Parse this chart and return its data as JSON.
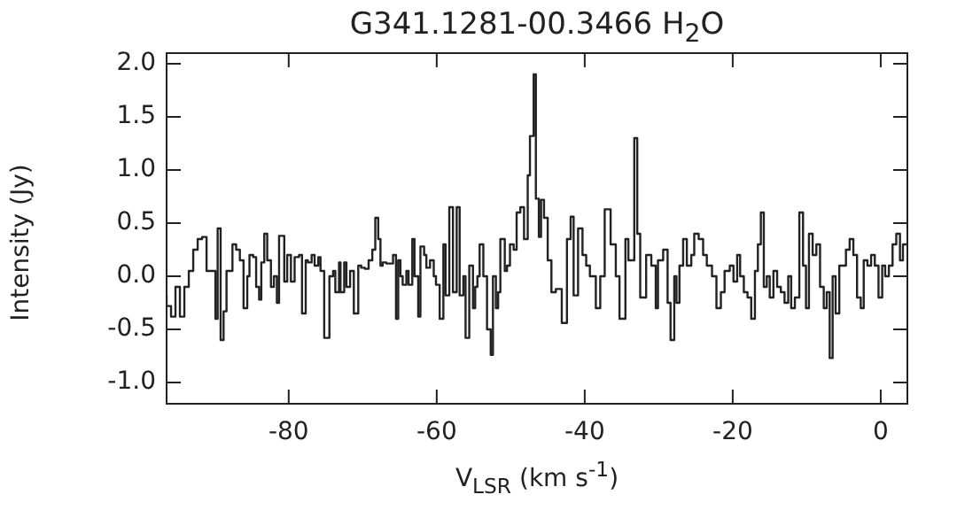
{
  "chart_data": {
    "type": "step",
    "title": "G341.1281-00.3466 H$_{2}$O",
    "xlabel": "V$_{LSR}$ (km s$^{-1}$)",
    "ylabel": "Intensity (Jy)",
    "xlim": [
      -96.5,
      3.6
    ],
    "xticks": [
      -80,
      -60,
      -40,
      -20,
      0
    ],
    "ylim": [
      -1.2,
      2.1
    ],
    "yticks": [
      {
        "value": -1,
        "label": "-1.0"
      },
      {
        "value": -0.5,
        "label": "-0.5"
      },
      {
        "value": 0,
        "label": "0.0"
      },
      {
        "value": 0.5,
        "label": "0.5"
      },
      {
        "value": 1,
        "label": "1.0"
      },
      {
        "value": 1.5,
        "label": "1.5"
      },
      {
        "value": 2,
        "label": "2.0"
      }
    ],
    "grid": false,
    "legend": false,
    "marker": "none",
    "line_style": "solid",
    "series": [
      {
        "color": "#222222",
        "x": [
          -96.5,
          -95.9,
          -95.3,
          -94.7,
          -94.1,
          -93.5,
          -92.9,
          -92.3,
          -91.7,
          -91.1,
          -90.4,
          -89.9,
          -89.6,
          -89.2,
          -88.8,
          -88.4,
          -88.0,
          -87.6,
          -87.1,
          -86.6,
          -86.1,
          -85.6,
          -85.3,
          -84.8,
          -84.4,
          -84.0,
          -83.7,
          -83.3,
          -82.9,
          -82.4,
          -82.0,
          -81.6,
          -81.3,
          -80.6,
          -80.2,
          -79.7,
          -79.2,
          -78.6,
          -78.2,
          -77.7,
          -77.4,
          -76.9,
          -76.5,
          -76.0,
          -75.7,
          -75.2,
          -74.5,
          -74.0,
          -73.7,
          -73.2,
          -73.0,
          -72.5,
          -72.2,
          -71.7,
          -71.2,
          -70.6,
          -70.2,
          -69.7,
          -69.2,
          -68.7,
          -68.3,
          -67.9,
          -67.6,
          -67.3,
          -66.8,
          -66.3,
          -65.9,
          -65.5,
          -65.2,
          -64.9,
          -64.6,
          -64.1,
          -63.8,
          -63.3,
          -63.0,
          -62.5,
          -62.2,
          -61.7,
          -61.4,
          -60.9,
          -60.4,
          -60.1,
          -59.6,
          -59.1,
          -58.8,
          -58.3,
          -57.8,
          -57.3,
          -56.9,
          -56.4,
          -56.1,
          -55.6,
          -55.1,
          -54.8,
          -54.5,
          -54.2,
          -53.7,
          -53.2,
          -52.7,
          -52.4,
          -52.0,
          -51.7,
          -51.4,
          -51.1,
          -50.8,
          -50.5,
          -50.1,
          -49.6,
          -49.2,
          -48.7,
          -48.2,
          -47.7,
          -47.4,
          -46.9,
          -46.6,
          -46.2,
          -45.9,
          -45.5,
          -45.0,
          -44.5,
          -43.9,
          -43.1,
          -42.4,
          -41.9,
          -41.5,
          -40.9,
          -40.3,
          -39.8,
          -39.3,
          -38.5,
          -37.9,
          -37.3,
          -36.5,
          -35.8,
          -35.3,
          -34.5,
          -34.1,
          -33.3,
          -32.9,
          -32.5,
          -31.7,
          -31.0,
          -30.4,
          -30.1,
          -29.4,
          -28.8,
          -28.4,
          -27.9,
          -27.6,
          -27.2,
          -26.7,
          -26.2,
          -25.6,
          -25.2,
          -24.6,
          -24.0,
          -23.5,
          -22.8,
          -22.2,
          -21.6,
          -21.1,
          -20.4,
          -19.9,
          -19.4,
          -19.0,
          -18.5,
          -18.0,
          -17.5,
          -17.0,
          -16.6,
          -16.2,
          -15.8,
          -15.4,
          -15.0,
          -14.5,
          -14.0,
          -13.5,
          -13.0,
          -12.5,
          -12.1,
          -11.6,
          -11.0,
          -10.5,
          -10.1,
          -9.7,
          -9.2,
          -8.7,
          -8.2,
          -7.7,
          -7.3,
          -6.9,
          -6.5,
          -6.1,
          -5.6,
          -5.2,
          -4.7,
          -4.2,
          -3.7,
          -3.2,
          -2.7,
          -2.3,
          -1.8,
          -1.3,
          -0.8,
          -0.3,
          0.2,
          0.6,
          1.1,
          1.6,
          2.1,
          2.6,
          3.0,
          3.5
        ],
        "values": [
          -0.18,
          -0.28,
          -0.38,
          -0.1,
          -0.38,
          -0.1,
          0.05,
          0.25,
          0.35,
          0.37,
          0.05,
          0.05,
          -0.4,
          0.45,
          -0.6,
          -0.33,
          0.05,
          0.05,
          0.3,
          0.25,
          0.15,
          -0.3,
          0.0,
          0.2,
          0.18,
          -0.1,
          -0.22,
          0.13,
          0.4,
          0.15,
          -0.1,
          0.0,
          -0.25,
          0.38,
          -0.05,
          0.2,
          -0.05,
          0.18,
          0.2,
          -0.35,
          0.15,
          0.13,
          0.2,
          0.1,
          0.18,
          0.05,
          -0.58,
          0.0,
          0.05,
          -0.15,
          0.13,
          -0.15,
          0.13,
          -0.1,
          0.05,
          -0.35,
          0.1,
          0.08,
          0.07,
          0.15,
          0.25,
          0.55,
          0.35,
          0.1,
          0.13,
          0.12,
          0.12,
          0.2,
          -0.4,
          0.15,
          0.0,
          -0.08,
          0.05,
          -0.08,
          0.35,
          0.0,
          -0.38,
          0.28,
          0.2,
          0.08,
          0.15,
          0.0,
          -0.08,
          -0.4,
          0.3,
          -0.18,
          0.65,
          -0.15,
          0.65,
          -0.18,
          0.0,
          -0.58,
          0.1,
          -0.3,
          -0.1,
          0.0,
          0.3,
          0.0,
          -0.5,
          -0.74,
          0.0,
          -0.3,
          -0.15,
          0.35,
          0.35,
          0.05,
          0.1,
          0.3,
          0.25,
          0.6,
          0.65,
          0.35,
          0.95,
          1.32,
          1.9,
          0.73,
          0.37,
          0.72,
          0.55,
          0.15,
          -0.15,
          -0.12,
          -0.44,
          0.35,
          0.56,
          -0.18,
          0.45,
          0.2,
          0.1,
          0.0,
          -0.3,
          0.0,
          0.63,
          0.3,
          0.0,
          -0.4,
          0.35,
          0.15,
          1.3,
          0.4,
          -0.2,
          0.2,
          0.1,
          -0.3,
          0.15,
          0.25,
          -0.25,
          -0.6,
          0.0,
          -0.25,
          0.1,
          0.35,
          0.1,
          0.2,
          0.4,
          0.35,
          0.2,
          0.1,
          0.0,
          -0.3,
          -0.15,
          0.05,
          0.1,
          -0.05,
          0.2,
          0.0,
          -0.15,
          -0.2,
          -0.4,
          0.05,
          0.3,
          0.6,
          -0.1,
          0.0,
          -0.2,
          0.05,
          -0.1,
          -0.15,
          -0.25,
          0.0,
          -0.3,
          -0.2,
          0.6,
          0.1,
          -0.3,
          0.4,
          0.2,
          0.3,
          -0.1,
          -0.3,
          -0.15,
          -0.77,
          0.0,
          -0.35,
          0.1,
          0.1,
          0.25,
          0.35,
          0.2,
          -0.2,
          -0.3,
          0.15,
          0.1,
          0.2,
          0.1,
          -0.2,
          0.1,
          0.0,
          0.1,
          0.3,
          0.4,
          0.15,
          0.3
        ]
      }
    ]
  }
}
